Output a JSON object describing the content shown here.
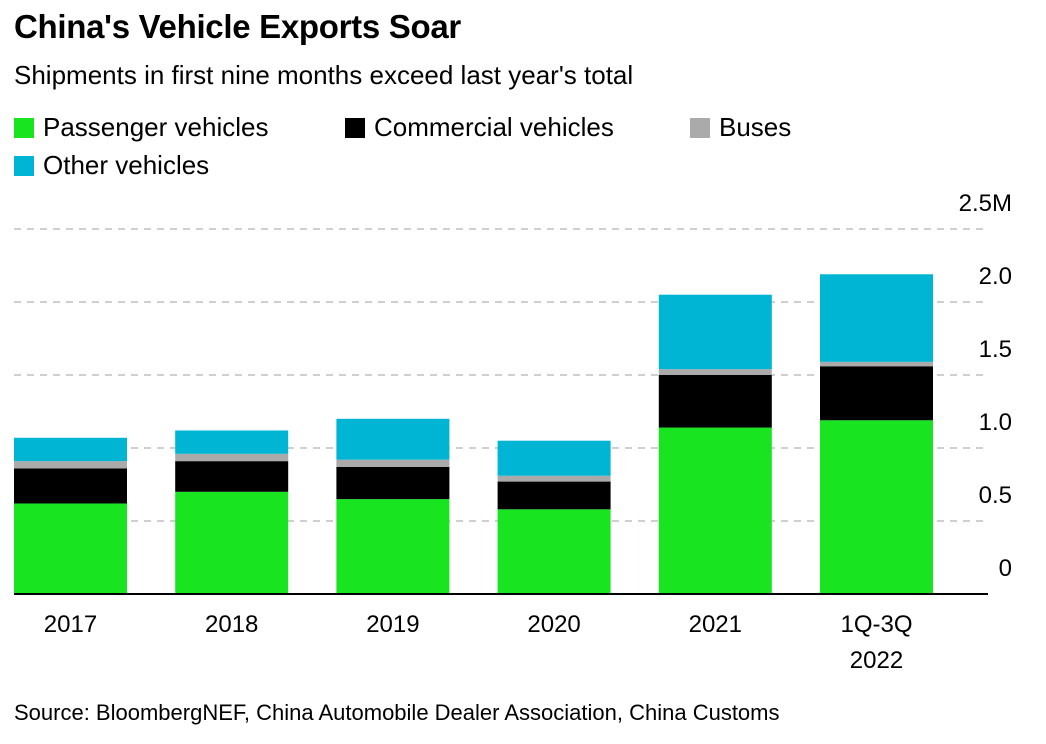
{
  "header": {
    "title": "China's Vehicle Exports Soar",
    "subtitle": "Shipments in first nine months exceed last year's total"
  },
  "legend": [
    {
      "label": "Passenger vehicles",
      "color": "#18e51f"
    },
    {
      "label": "Commercial vehicles",
      "color": "#000000"
    },
    {
      "label": "Buses",
      "color": "#aaaaaa"
    },
    {
      "label": "Other vehicles",
      "color": "#00b4d4"
    }
  ],
  "footer": {
    "source": "Source: BloombergNEF, China Automobile Dealer Association, China Customs"
  },
  "chart_data": {
    "type": "bar",
    "stacked": true,
    "categories": [
      [
        "2017"
      ],
      [
        "2018"
      ],
      [
        "2019"
      ],
      [
        "2020"
      ],
      [
        "2021"
      ],
      [
        "1Q-3Q",
        "2022"
      ]
    ],
    "series": [
      {
        "name": "Passenger vehicles",
        "color": "#18e51f",
        "values": [
          0.62,
          0.7,
          0.65,
          0.58,
          1.14,
          1.19
        ]
      },
      {
        "name": "Commercial vehicles",
        "color": "#000000",
        "values": [
          0.24,
          0.21,
          0.22,
          0.19,
          0.36,
          0.37
        ]
      },
      {
        "name": "Buses",
        "color": "#aaaaaa",
        "values": [
          0.05,
          0.05,
          0.05,
          0.04,
          0.04,
          0.03
        ]
      },
      {
        "name": "Other vehicles",
        "color": "#00b4d4",
        "values": [
          0.16,
          0.16,
          0.28,
          0.24,
          0.51,
          0.6
        ]
      }
    ],
    "yticks": [
      0,
      0.5,
      1.0,
      1.5,
      2.0,
      2.5
    ],
    "ytick_labels": [
      "0",
      "0.5",
      "1.0",
      "1.5",
      "2.0",
      "2.5M"
    ],
    "ylim": [
      0,
      2.5
    ],
    "grid": true,
    "grid_style": "dashed",
    "y_axis_side": "right",
    "legend_position": "top-left"
  }
}
